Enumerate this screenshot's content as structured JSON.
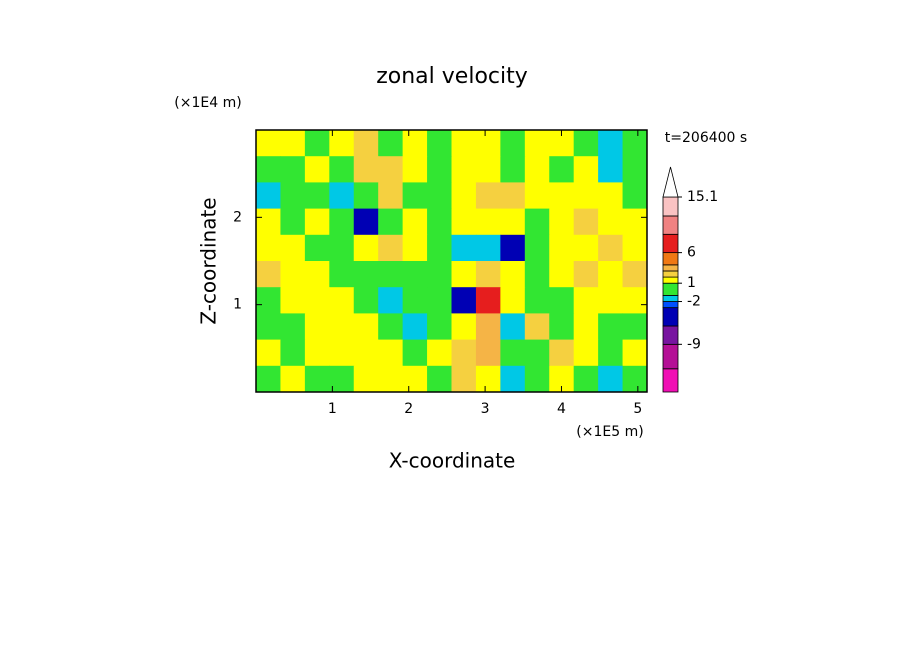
{
  "chart_data": {
    "type": "contour",
    "title": "zonal velocity",
    "x_label": "X-coordinate",
    "y_label": "Z-coordinate",
    "x_unit": "(×1E5 m)",
    "y_unit": "(×1E4 m)",
    "annotation": "t=206400 s",
    "xlim": [
      0,
      5.12
    ],
    "ylim": [
      0,
      3
    ],
    "xticks": [
      1,
      2,
      3,
      4,
      5
    ],
    "yticks": [
      1,
      2
    ],
    "x": [
      0.16,
      0.48,
      0.8,
      1.12,
      1.44,
      1.76,
      2.08,
      2.4,
      2.72,
      3.04,
      3.36,
      3.68,
      4.0,
      4.32,
      4.64,
      4.96
    ],
    "z": [
      2.85,
      2.55,
      2.25,
      1.95,
      1.65,
      1.35,
      1.05,
      0.75,
      0.45,
      0.15
    ],
    "values": [
      [
        1.5,
        1.5,
        0.5,
        1.5,
        2.5,
        0.5,
        1.5,
        0.5,
        1.5,
        1.5,
        0.5,
        1.5,
        1.5,
        0.5,
        -1.5,
        0.5
      ],
      [
        0.5,
        0.5,
        1.5,
        0.5,
        2.5,
        2.5,
        1.5,
        0.5,
        1.5,
        1.5,
        0.5,
        1.5,
        0.5,
        1.5,
        -1.5,
        0.5
      ],
      [
        -1.5,
        0.5,
        0.5,
        -1.5,
        0.5,
        2.5,
        0.5,
        0.5,
        1.5,
        2.5,
        2.5,
        1.5,
        1.5,
        1.5,
        1.5,
        0.5
      ],
      [
        1.5,
        0.5,
        1.5,
        0.5,
        -4,
        0.5,
        1.5,
        0.5,
        1.5,
        1.5,
        1.5,
        0.5,
        1.5,
        2.5,
        1.5,
        1.5
      ],
      [
        1.5,
        1.5,
        0.5,
        0.5,
        1.5,
        2.5,
        1.5,
        0.5,
        -1.5,
        -1.5,
        -4,
        0.5,
        1.5,
        1.5,
        2.5,
        1.5
      ],
      [
        2.5,
        1.5,
        1.5,
        0.5,
        0.5,
        0.5,
        0.5,
        0.5,
        1.5,
        2.5,
        1.5,
        0.5,
        1.5,
        2.5,
        1.5,
        2.5
      ],
      [
        0.5,
        1.5,
        1.5,
        1.5,
        0.5,
        -1.5,
        0.5,
        0.5,
        -5,
        7,
        1.5,
        0.5,
        0.5,
        1.5,
        1.5,
        1.5
      ],
      [
        0.5,
        0.5,
        1.5,
        1.5,
        1.5,
        0.5,
        -1.5,
        0.5,
        1.5,
        3.5,
        -1.5,
        2.5,
        0.5,
        1.5,
        0.5,
        0.5
      ],
      [
        1.5,
        0.5,
        1.5,
        1.5,
        1.5,
        1.5,
        0.5,
        1.5,
        2.5,
        3.5,
        0.5,
        0.5,
        2.5,
        1.5,
        0.5,
        1.5
      ],
      [
        0.5,
        1.5,
        0.5,
        0.5,
        1.5,
        1.5,
        1.5,
        0.5,
        2.5,
        1.5,
        -1.5,
        0.5,
        1.5,
        0.5,
        -1.5,
        0.5
      ]
    ],
    "colorbar": {
      "lim": [
        -16.8,
        15.1
      ],
      "ticks": [
        15.1,
        6,
        1,
        -2,
        -9
      ],
      "levels": [
        -16.8,
        -13,
        -9,
        -6,
        -3,
        -2,
        -1,
        1,
        2,
        3,
        4,
        6,
        9,
        12,
        15.1
      ],
      "colors": [
        "#f00fb4",
        "#b40f96",
        "#7814a0",
        "#0000b4",
        "#0050ff",
        "#00c8e6",
        "#32e632",
        "#ffff00",
        "#f5d040",
        "#f5b446",
        "#f07814",
        "#e61e1e",
        "#f08282",
        "#fac3c3"
      ]
    }
  }
}
